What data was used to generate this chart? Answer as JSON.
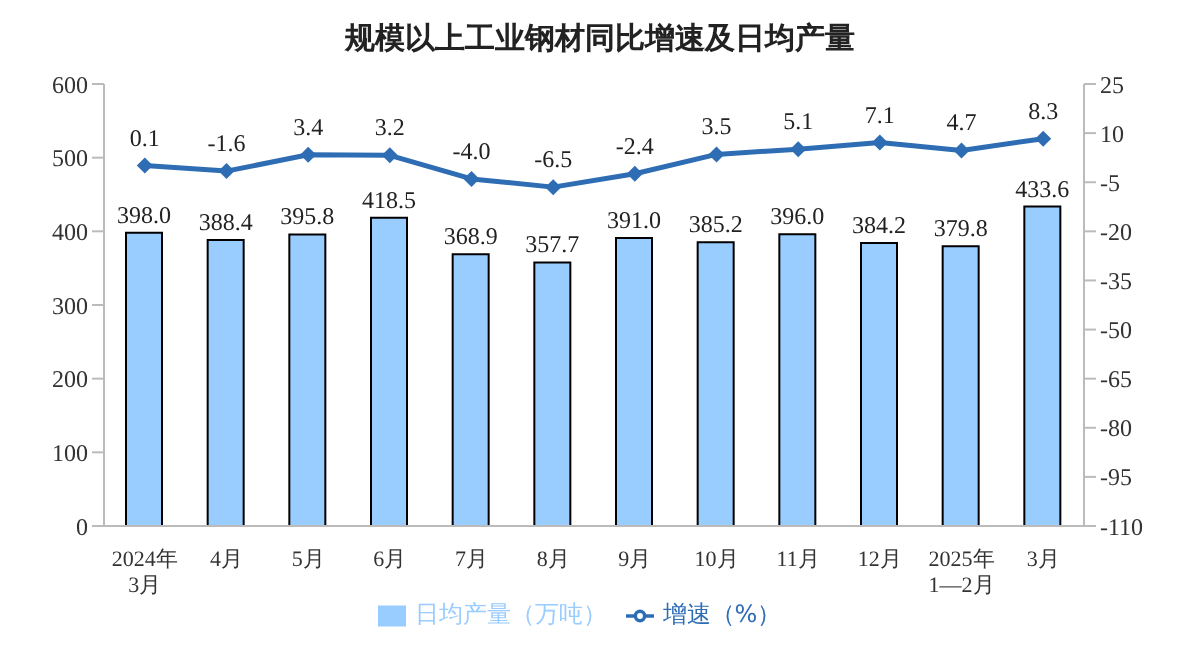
{
  "chart_data": {
    "type": "bar",
    "title": "规模以上工业钢材同比增速及日均产量",
    "categories": [
      "2024年\n3月",
      "4月",
      "5月",
      "6月",
      "7月",
      "8月",
      "9月",
      "10月",
      "11月",
      "12月",
      "2025年\n1—2月",
      "3月"
    ],
    "series": [
      {
        "name": "日均产量（万吨）",
        "color": "#99ccff",
        "values": [
          398.0,
          388.4,
          395.8,
          418.5,
          368.9,
          357.7,
          391.0,
          385.2,
          396.0,
          384.2,
          379.8,
          433.6
        ],
        "value_labels": [
          "398.0",
          "388.4",
          "395.8",
          "418.5",
          "368.9",
          "357.7",
          "391.0",
          "385.2",
          "396.0",
          "384.2",
          "379.8",
          "433.6"
        ]
      },
      {
        "name": "增速（%）",
        "type": "line",
        "axis": "y2",
        "color": "#2e6db4",
        "marker": "diamond",
        "values": [
          0.1,
          -1.6,
          3.4,
          3.2,
          -4.0,
          -6.5,
          -2.4,
          3.5,
          5.1,
          7.1,
          4.7,
          8.3
        ],
        "value_labels": [
          "0.1",
          "-1.6",
          "3.4",
          "3.2",
          "-4.0",
          "-6.5",
          "-2.4",
          "3.5",
          "5.1",
          "7.1",
          "4.7",
          "8.3"
        ]
      }
    ],
    "ylim": [
      0,
      600
    ],
    "yticks": [
      0,
      100,
      200,
      300,
      400,
      500,
      600
    ],
    "y2lim": [
      -110,
      25
    ],
    "y2ticks": [
      -110,
      -95,
      -80,
      -65,
      -50,
      -35,
      -20,
      -5,
      10,
      25
    ],
    "legend": "bottom",
    "grid": false
  }
}
